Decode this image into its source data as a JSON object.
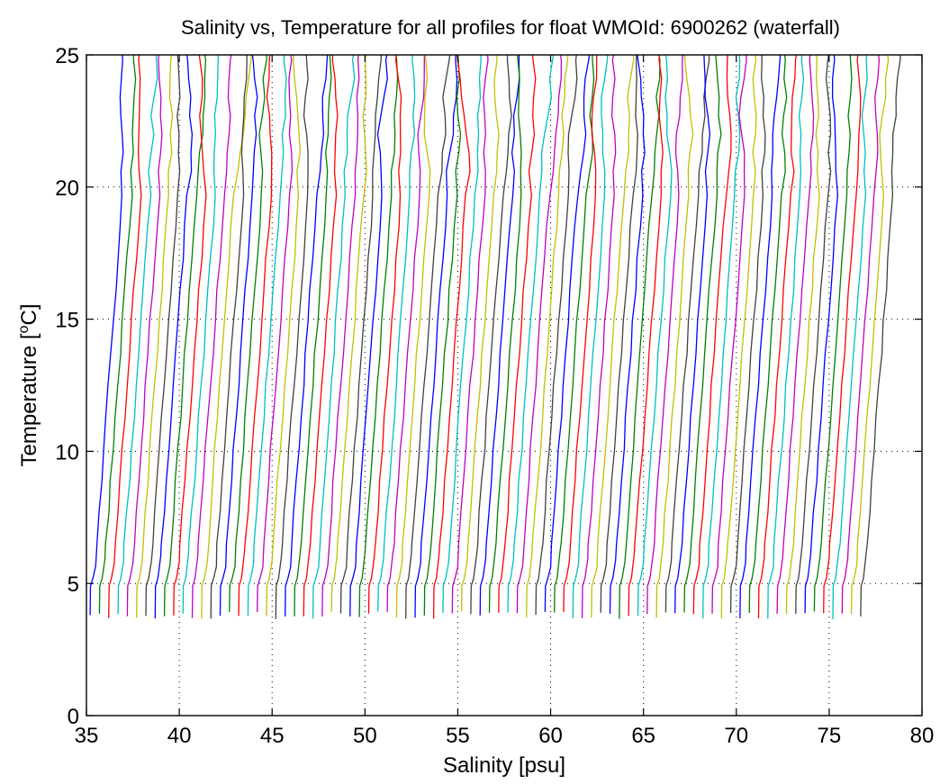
{
  "chart_data": {
    "type": "line",
    "title": "Salinity vs, Temperature for all profiles for float WMOId: 6900262 (waterfall)",
    "xlabel": "Salinity [psu]",
    "ylabel_prefix": "Temperature [",
    "ylabel_sup": "o",
    "ylabel_suffix": "C]",
    "xlim": [
      35,
      80
    ],
    "ylim": [
      0,
      25
    ],
    "x_ticks": [
      "35",
      "40",
      "45",
      "50",
      "55",
      "60",
      "65",
      "70",
      "75",
      "80"
    ],
    "y_ticks": [
      "0",
      "5",
      "10",
      "15",
      "20",
      "25"
    ],
    "grid": true,
    "waterfall": {
      "profile_count": 84,
      "first_profile_bottom_salinity": 35.2,
      "salinity_offset_per_profile": 0.5,
      "bottom_temperature": 3.8,
      "surface_temperature": 25,
      "mixed_layer_top_temperature": 20,
      "color_cycle": [
        "#0000ff",
        "#008000",
        "#ff0000",
        "#00bfbf",
        "#bf00bf",
        "#bfbf00",
        "#404040"
      ]
    }
  }
}
